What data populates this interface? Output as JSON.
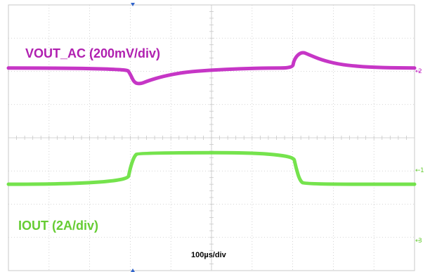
{
  "chart_data": {
    "type": "line",
    "title": "",
    "time_unit": "µs",
    "timebase_label": "100µs/div",
    "x_range": [
      0,
      1000
    ],
    "grid": true,
    "x_divisions": 10,
    "y_divisions": 8,
    "series": [
      {
        "name": "VOUT_AC (200mV/div)",
        "channel_marker": "2",
        "color": "#c020c0",
        "unit": "div",
        "baseline_div": 2.1,
        "x": [
          0,
          290,
          300,
          310,
          325,
          345,
          380,
          430,
          500,
          570,
          640,
          700,
          702,
          712,
          725,
          740,
          770,
          810,
          860,
          920,
          1000
        ],
        "y": [
          0.0,
          0.0,
          -0.18,
          -0.45,
          -0.48,
          -0.38,
          -0.25,
          -0.13,
          -0.06,
          -0.02,
          0.0,
          0.0,
          0.2,
          0.4,
          0.48,
          0.4,
          0.25,
          0.12,
          0.05,
          0.01,
          0.0
        ]
      },
      {
        "name": "IOUT (2A/div)",
        "channel_marker": "1",
        "color": "#66e03a",
        "unit": "div",
        "baseline_div": -1.4,
        "x": [
          0,
          292,
          300,
          310,
          320,
          700,
          708,
          718,
          730,
          1000
        ],
        "y": [
          0.0,
          0.0,
          0.5,
          0.85,
          0.95,
          0.95,
          0.5,
          0.1,
          0.0,
          0.0
        ]
      }
    ],
    "channel3_marker": "3"
  },
  "colors": {
    "grid": "#c8c8c8",
    "background": "#ffffff"
  }
}
